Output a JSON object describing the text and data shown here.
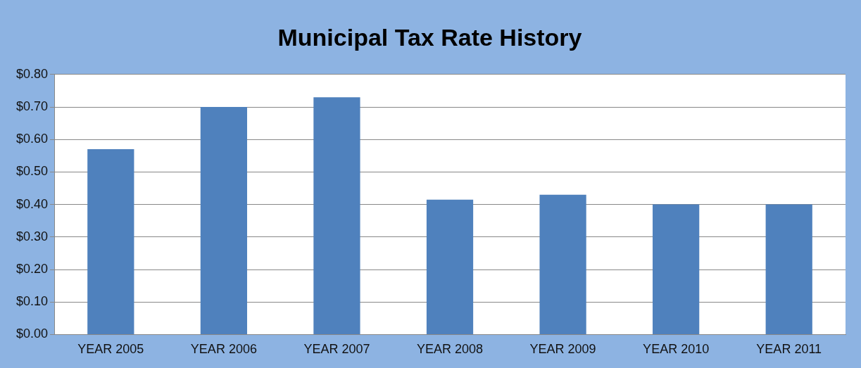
{
  "chart_data": {
    "type": "bar",
    "title": "Municipal Tax Rate History",
    "categories": [
      "YEAR 2005",
      "YEAR 2006",
      "YEAR 2007",
      "YEAR 2008",
      "YEAR 2009",
      "YEAR 2010",
      "YEAR 2011"
    ],
    "values": [
      0.57,
      0.7,
      0.73,
      0.415,
      0.43,
      0.4,
      0.4
    ],
    "color": "#4f81bd",
    "ylim": [
      0,
      0.8
    ],
    "yticks": [
      {
        "value": 0,
        "label": "$0.00"
      },
      {
        "value": 0.1,
        "label": "$0.10"
      },
      {
        "value": 0.2,
        "label": "$0.20"
      },
      {
        "value": 0.3,
        "label": "$0.30"
      },
      {
        "value": 0.4,
        "label": "$0.40"
      },
      {
        "value": 0.5,
        "label": "$0.50"
      },
      {
        "value": 0.6,
        "label": "$0.60"
      },
      {
        "value": 0.7,
        "label": "$0.70"
      },
      {
        "value": 0.8,
        "label": "$0.80"
      }
    ],
    "grid": "y",
    "legend": false
  }
}
